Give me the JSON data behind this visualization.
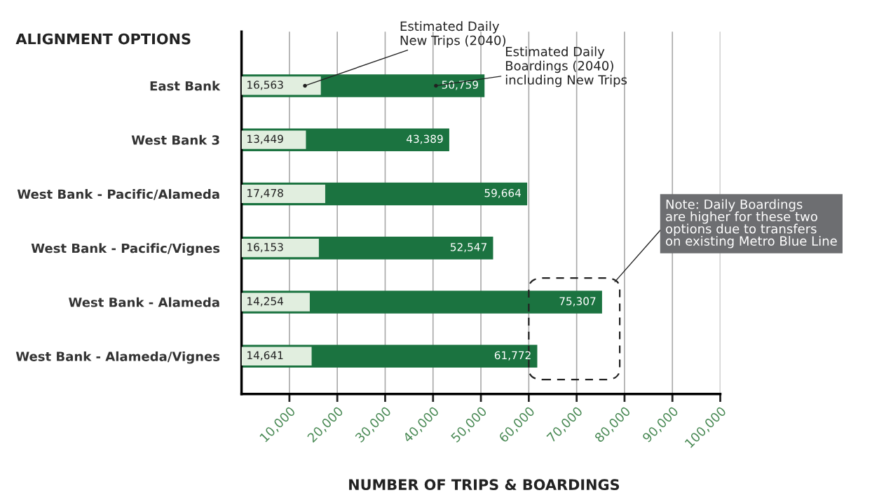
{
  "chart_data": {
    "type": "bar",
    "orientation": "horizontal",
    "title": "ALIGNMENT OPTIONS",
    "xlabel": "NUMBER OF TRIPS & BOARDINGS",
    "categories": [
      "East Bank",
      "West Bank 3",
      "West Bank - Pacific/Alameda",
      "West Bank - Pacific/Vignes",
      "West Bank - Alameda",
      "West Bank - Alameda/Vignes"
    ],
    "series": [
      {
        "name": "Estimated Daily Boardings (2040) including New Trips",
        "color": "#1b7340",
        "values": [
          50759,
          43389,
          59664,
          52547,
          75307,
          61772
        ],
        "value_labels": [
          "50,759",
          "43,389",
          "59,664",
          "52,547",
          "75,307",
          "61,772"
        ]
      },
      {
        "name": "Estimated Daily New Trips (2040)",
        "color": "#e1eedf",
        "values": [
          16563,
          13449,
          17478,
          16153,
          14254,
          14641
        ],
        "value_labels": [
          "16,563",
          "13,449",
          "17,478",
          "16,153",
          "14,254",
          "14,641"
        ]
      }
    ],
    "xlim": [
      0,
      100000
    ],
    "xticks": [
      {
        "value": 10000,
        "label": "10,000"
      },
      {
        "value": 20000,
        "label": "20,000"
      },
      {
        "value": 30000,
        "label": "30,000"
      },
      {
        "value": 40000,
        "label": "40,000"
      },
      {
        "value": 50000,
        "label": "50,000"
      },
      {
        "value": 60000,
        "label": "60,000"
      },
      {
        "value": 70000,
        "label": "70,000"
      },
      {
        "value": 80000,
        "label": "80,000"
      },
      {
        "value": 90000,
        "label": "90,000"
      },
      {
        "value": 100000,
        "label": "100,000"
      }
    ],
    "grid": "x",
    "legend": false,
    "annotations": [
      "Note: Daily Boardings\nare higher for these two\noptions due to transfers\non existing Metro Blue Line"
    ]
  }
}
